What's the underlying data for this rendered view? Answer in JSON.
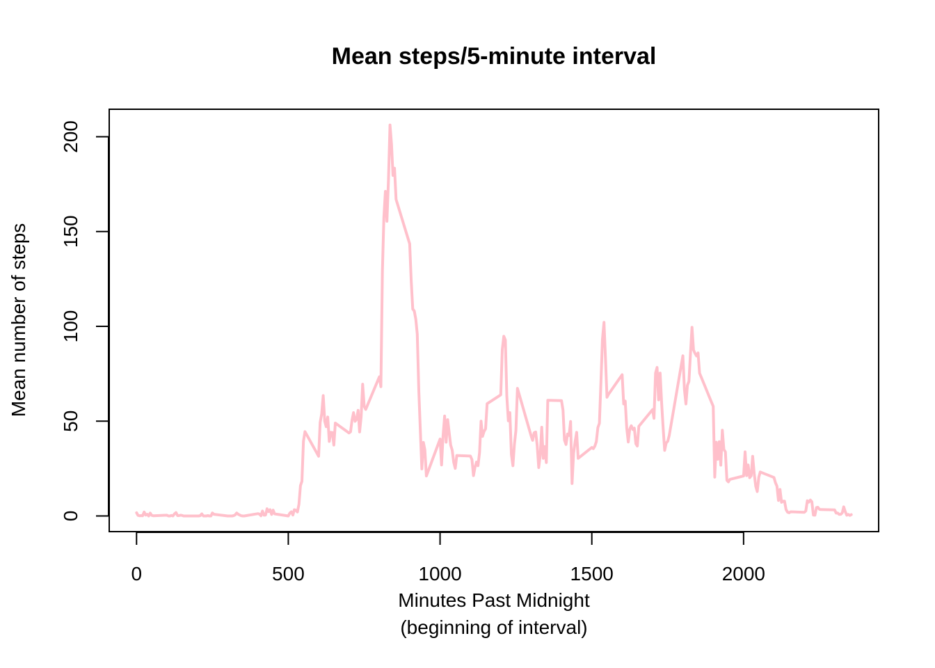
{
  "chart_data": {
    "type": "line",
    "title": "Mean steps/5-minute interval",
    "xlabel": "Minutes Past Midnight",
    "xlabel_line2": "(beginning of interval)",
    "ylabel": "Mean number of steps",
    "xlim": [
      -90,
      2445
    ],
    "ylim": [
      -8.25,
      214.5
    ],
    "xticks": [
      0,
      500,
      1000,
      1500,
      2000
    ],
    "yticks": [
      0,
      50,
      100,
      150,
      200
    ],
    "grid": false,
    "legend": "none",
    "line_color": "#FFC0CB",
    "series": [
      {
        "x": [
          0,
          5,
          10,
          15,
          20,
          25,
          30,
          35,
          40,
          45,
          50,
          55,
          100,
          105,
          110,
          115,
          120,
          125,
          130,
          135,
          140,
          145,
          150,
          155,
          200,
          205,
          210,
          215,
          220,
          225,
          230,
          235,
          240,
          245,
          250,
          255,
          300,
          305,
          310,
          315,
          320,
          325,
          330,
          335,
          340,
          345,
          350,
          355,
          400,
          405,
          410,
          415,
          420,
          425,
          430,
          435,
          440,
          445,
          450,
          455,
          500,
          505,
          510,
          515,
          520,
          525,
          530,
          535,
          540,
          545,
          550,
          555,
          600,
          605,
          610,
          615,
          620,
          625,
          630,
          635,
          640,
          645,
          650,
          655,
          700,
          705,
          710,
          715,
          720,
          725,
          730,
          735,
          740,
          745,
          750,
          755,
          800,
          805,
          810,
          815,
          820,
          825,
          830,
          835,
          840,
          845,
          850,
          855,
          900,
          905,
          910,
          915,
          920,
          925,
          930,
          935,
          940,
          945,
          950,
          955,
          1000,
          1005,
          1010,
          1015,
          1020,
          1025,
          1030,
          1035,
          1040,
          1045,
          1050,
          1055,
          1100,
          1105,
          1110,
          1115,
          1120,
          1125,
          1130,
          1135,
          1140,
          1145,
          1150,
          1155,
          1200,
          1205,
          1210,
          1215,
          1220,
          1225,
          1230,
          1235,
          1240,
          1245,
          1250,
          1255,
          1300,
          1305,
          1310,
          1315,
          1320,
          1325,
          1330,
          1335,
          1340,
          1345,
          1350,
          1355,
          1400,
          1405,
          1410,
          1415,
          1420,
          1425,
          1430,
          1435,
          1440,
          1445,
          1450,
          1455,
          1500,
          1505,
          1510,
          1515,
          1520,
          1525,
          1530,
          1535,
          1540,
          1545,
          1550,
          1555,
          1600,
          1605,
          1610,
          1615,
          1620,
          1625,
          1630,
          1635,
          1640,
          1645,
          1650,
          1655,
          1700,
          1705,
          1710,
          1715,
          1720,
          1725,
          1730,
          1735,
          1740,
          1745,
          1750,
          1755,
          1800,
          1805,
          1810,
          1815,
          1820,
          1825,
          1830,
          1835,
          1840,
          1845,
          1850,
          1855,
          1900,
          1905,
          1910,
          1915,
          1920,
          1925,
          1930,
          1935,
          1940,
          1945,
          1950,
          1955,
          2000,
          2005,
          2010,
          2015,
          2020,
          2025,
          2030,
          2035,
          2040,
          2045,
          2050,
          2055,
          2100,
          2105,
          2110,
          2115,
          2120,
          2125,
          2130,
          2135,
          2140,
          2145,
          2150,
          2155,
          2200,
          2205,
          2210,
          2215,
          2220,
          2225,
          2230,
          2235,
          2240,
          2245,
          2250,
          2255,
          2300,
          2305,
          2310,
          2315,
          2320,
          2325,
          2330,
          2335,
          2340,
          2345,
          2350,
          2355
        ],
        "y": [
          1.7,
          0.3,
          0.1,
          0.2,
          0.1,
          2.1,
          0.5,
          0.9,
          0,
          1.5,
          0.3,
          0.1,
          0.4,
          0,
          0,
          0.3,
          0,
          1.1,
          1.8,
          0.2,
          0.2,
          0.4,
          0.3,
          0,
          0,
          0,
          0.2,
          1.1,
          0,
          0,
          0,
          0.2,
          0,
          0,
          1.6,
          0.9,
          0,
          0,
          0,
          0,
          0.2,
          0.6,
          1.6,
          0.9,
          0.5,
          0.1,
          0,
          0,
          1.2,
          1,
          0.1,
          2.6,
          0.4,
          0.5,
          3.8,
          2.3,
          3.3,
          0.8,
          3.1,
          1.1,
          0,
          1.5,
          2.2,
          0.5,
          3.3,
          3,
          2.1,
          6.1,
          16,
          18.3,
          39.5,
          44.5,
          31.5,
          49.3,
          53.8,
          63.5,
          49.9,
          47.1,
          52.2,
          39.3,
          44.1,
          44,
          37.4,
          49,
          43.8,
          44.4,
          50.5,
          54.5,
          49.9,
          51,
          55.7,
          44.3,
          52.3,
          69.5,
          57.8,
          56.2,
          73.4,
          68.2,
          129.4,
          157.5,
          171.2,
          155.4,
          177.3,
          206.2,
          195.9,
          179.6,
          183.4,
          167,
          143.5,
          124,
          109.1,
          108.1,
          103.7,
          95.9,
          66.2,
          45.2,
          24.8,
          38.8,
          34.9,
          21.1,
          40.6,
          26.9,
          42.4,
          52.7,
          38.9,
          50.8,
          44.3,
          37.4,
          34.7,
          28.3,
          25.1,
          31.9,
          31.6,
          29.7,
          21.3,
          25.5,
          28.4,
          26.5,
          33.4,
          50,
          42,
          44.6,
          46,
          59.2,
          63.9,
          87.8,
          94.8,
          92.8,
          63.4,
          50.2,
          54.5,
          32.4,
          26.5,
          37.7,
          45.1,
          67.3,
          42.3,
          39.9,
          43.9,
          44.3,
          37.1,
          25.5,
          32,
          46.8,
          30.4,
          36.6,
          28.2,
          61,
          60.8,
          55.8,
          40,
          37.7,
          43.2,
          42.5,
          49.8,
          17.1,
          33.1,
          39.2,
          44.1,
          30.4,
          36.1,
          35.5,
          36.9,
          39.2,
          46.6,
          48.9,
          70.4,
          93.3,
          102.1,
          83.4,
          62.6,
          64.2,
          74.5,
          59.1,
          60.6,
          46.3,
          39,
          45.8,
          47.6,
          45.6,
          46.3,
          38.1,
          36.9,
          47.3,
          56.1,
          51.5,
          75.4,
          78.3,
          61.2,
          75.4,
          59.3,
          46.6,
          34.6,
          38.5,
          39.4,
          42.5,
          84.5,
          66.8,
          59.1,
          68.9,
          71,
          85.7,
          99.5,
          87.5,
          85.8,
          84.4,
          86,
          75.3,
          57.8,
          20.5,
          38.9,
          29.9,
          39.2,
          26.8,
          45.2,
          35.1,
          33.8,
          18.8,
          18,
          19.3,
          21.1,
          33.8,
          21.3,
          26.9,
          20.2,
          21.2,
          31.5,
          22.5,
          15.7,
          12.9,
          20.4,
          23.2,
          20.3,
          17.5,
          15.7,
          8.2,
          14,
          7.2,
          7.8,
          7.8,
          3.4,
          2,
          1.7,
          2.2,
          1.9,
          2.7,
          8,
          7.3,
          8.4,
          7.5,
          0.5,
          0.4,
          4.4,
          4.6,
          3.5,
          3.4,
          3.2,
          1.5,
          1.6,
          0.8,
          0.9,
          1.6,
          4.8,
          2.3,
          0.4,
          0.8,
          0.3,
          0.7
        ]
      }
    ]
  }
}
